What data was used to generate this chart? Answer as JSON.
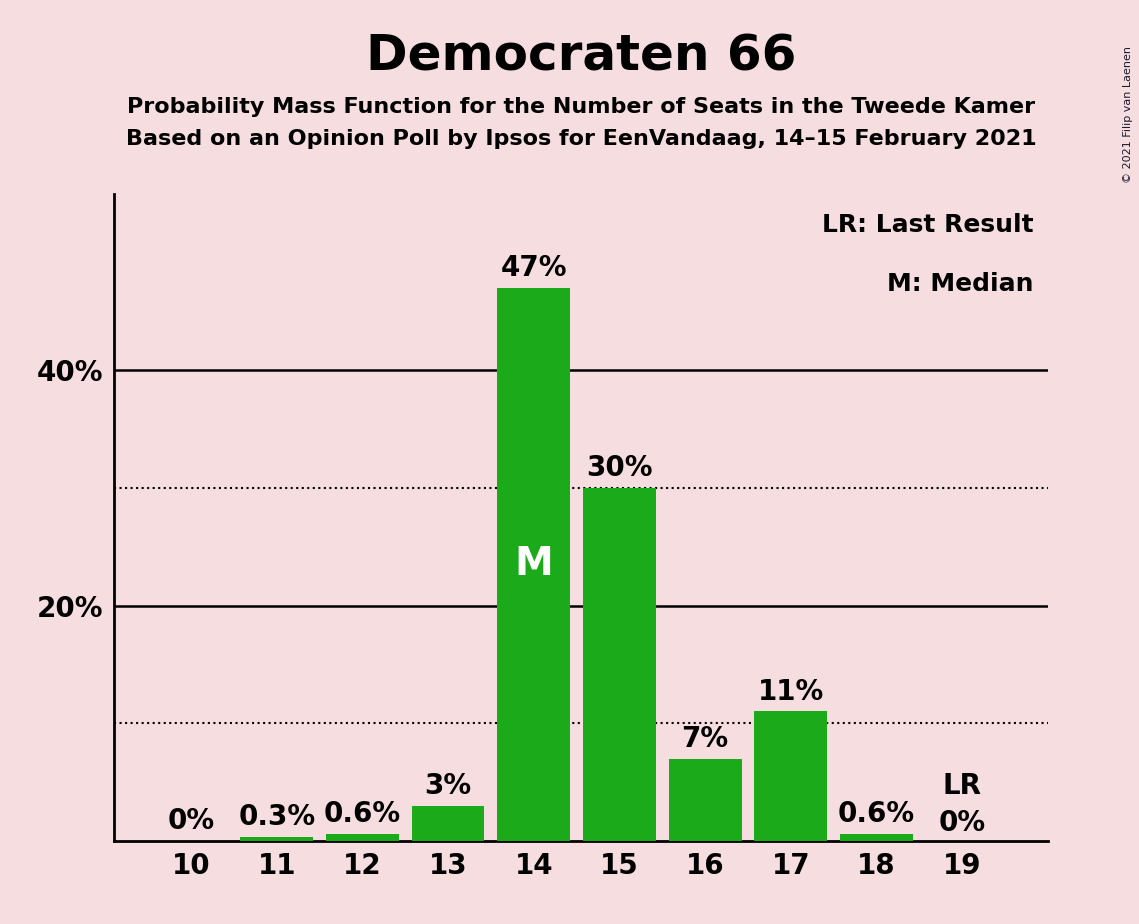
{
  "title": "Democraten 66",
  "subtitle1": "Probability Mass Function for the Number of Seats in the Tweede Kamer",
  "subtitle2": "Based on an Opinion Poll by Ipsos for EenVandaag, 14–15 February 2021",
  "seats": [
    10,
    11,
    12,
    13,
    14,
    15,
    16,
    17,
    18,
    19
  ],
  "probabilities": [
    0.0,
    0.3,
    0.6,
    3.0,
    47.0,
    30.0,
    7.0,
    11.0,
    0.6,
    0.0
  ],
  "bar_labels": [
    "0%",
    "0.3%",
    "0.6%",
    "3%",
    "47%",
    "30%",
    "7%",
    "11%",
    "0.6%",
    "0%"
  ],
  "bar_color": "#1aaa1a",
  "background_color": "#f5dde0",
  "median_seat": 14,
  "last_result_seat": 19,
  "median_label": "M",
  "last_result_label": "LR",
  "legend_lr": "LR: Last Result",
  "legend_m": "M: Median",
  "copyright": "© 2021 Filip van Laenen",
  "dotted_grid_lines": [
    10,
    30
  ],
  "solid_grid_lines": [
    20,
    40
  ],
  "ylim": [
    0,
    55
  ],
  "title_fontsize": 36,
  "subtitle_fontsize": 16,
  "bar_label_fontsize": 20,
  "axis_tick_fontsize": 20,
  "legend_fontsize": 18,
  "median_label_fontsize": 28,
  "lr_label_fontsize": 20
}
